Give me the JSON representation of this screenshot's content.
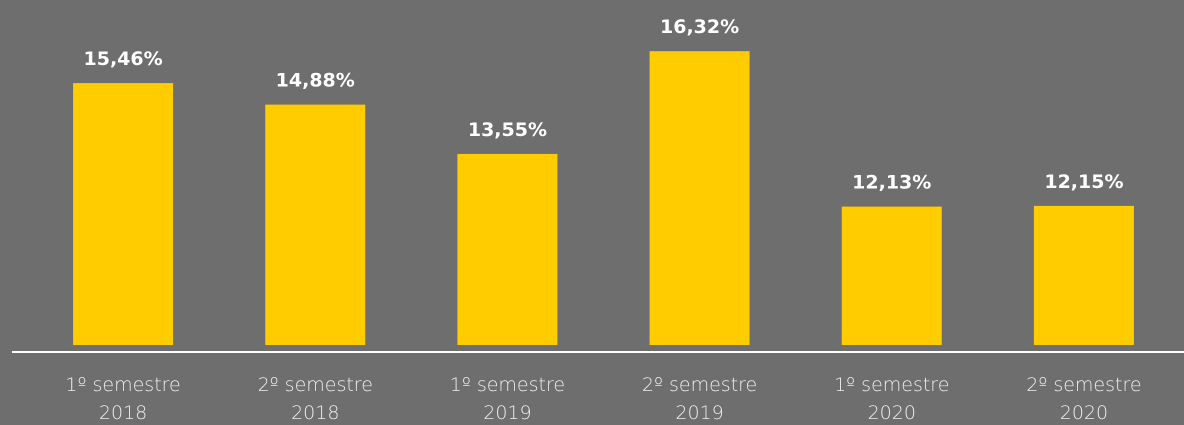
{
  "chart_data": {
    "type": "bar",
    "categories": [
      [
        "1º semestre",
        "2018"
      ],
      [
        "2º semestre",
        "2018"
      ],
      [
        "1º semestre",
        "2019"
      ],
      [
        "2º semestre",
        "2019"
      ],
      [
        "1º semestre",
        "2020"
      ],
      [
        "2º semestre",
        "2020"
      ]
    ],
    "values": [
      15.46,
      14.88,
      13.55,
      16.32,
      12.13,
      12.15
    ],
    "value_labels": [
      "15,46%",
      "14,88%",
      "13,55%",
      "16,32%",
      "12,13%",
      "12,15%"
    ],
    "color": "#ffcc00",
    "ylim": [
      8.4,
      17.7
    ]
  }
}
